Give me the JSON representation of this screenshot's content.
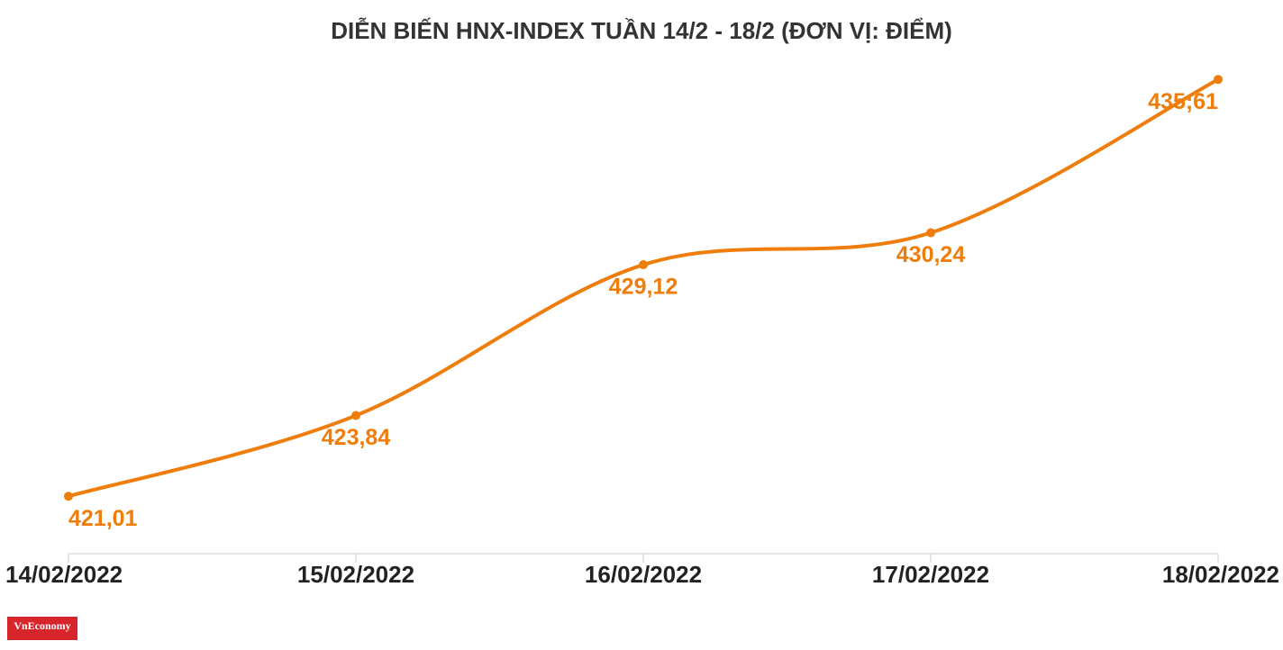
{
  "chart_data": {
    "type": "line",
    "title": "DIỄN BIẾN HNX-INDEX TUẦN 14/2 - 18/2 (ĐƠN VỊ: ĐIỂM)",
    "categories": [
      "14/02/2022",
      "15/02/2022",
      "16/02/2022",
      "17/02/2022",
      "18/02/2022"
    ],
    "series": [
      {
        "name": "HNX-Index",
        "color": "#ef7d0b",
        "values": [
          421.01,
          423.84,
          429.12,
          430.24,
          435.61
        ],
        "value_labels": [
          "421,01",
          "423,84",
          "429,12",
          "430,24",
          "435;61"
        ]
      }
    ],
    "ylim": [
      419,
      436.5
    ],
    "smooth": true
  },
  "logo": "VnEconomy"
}
